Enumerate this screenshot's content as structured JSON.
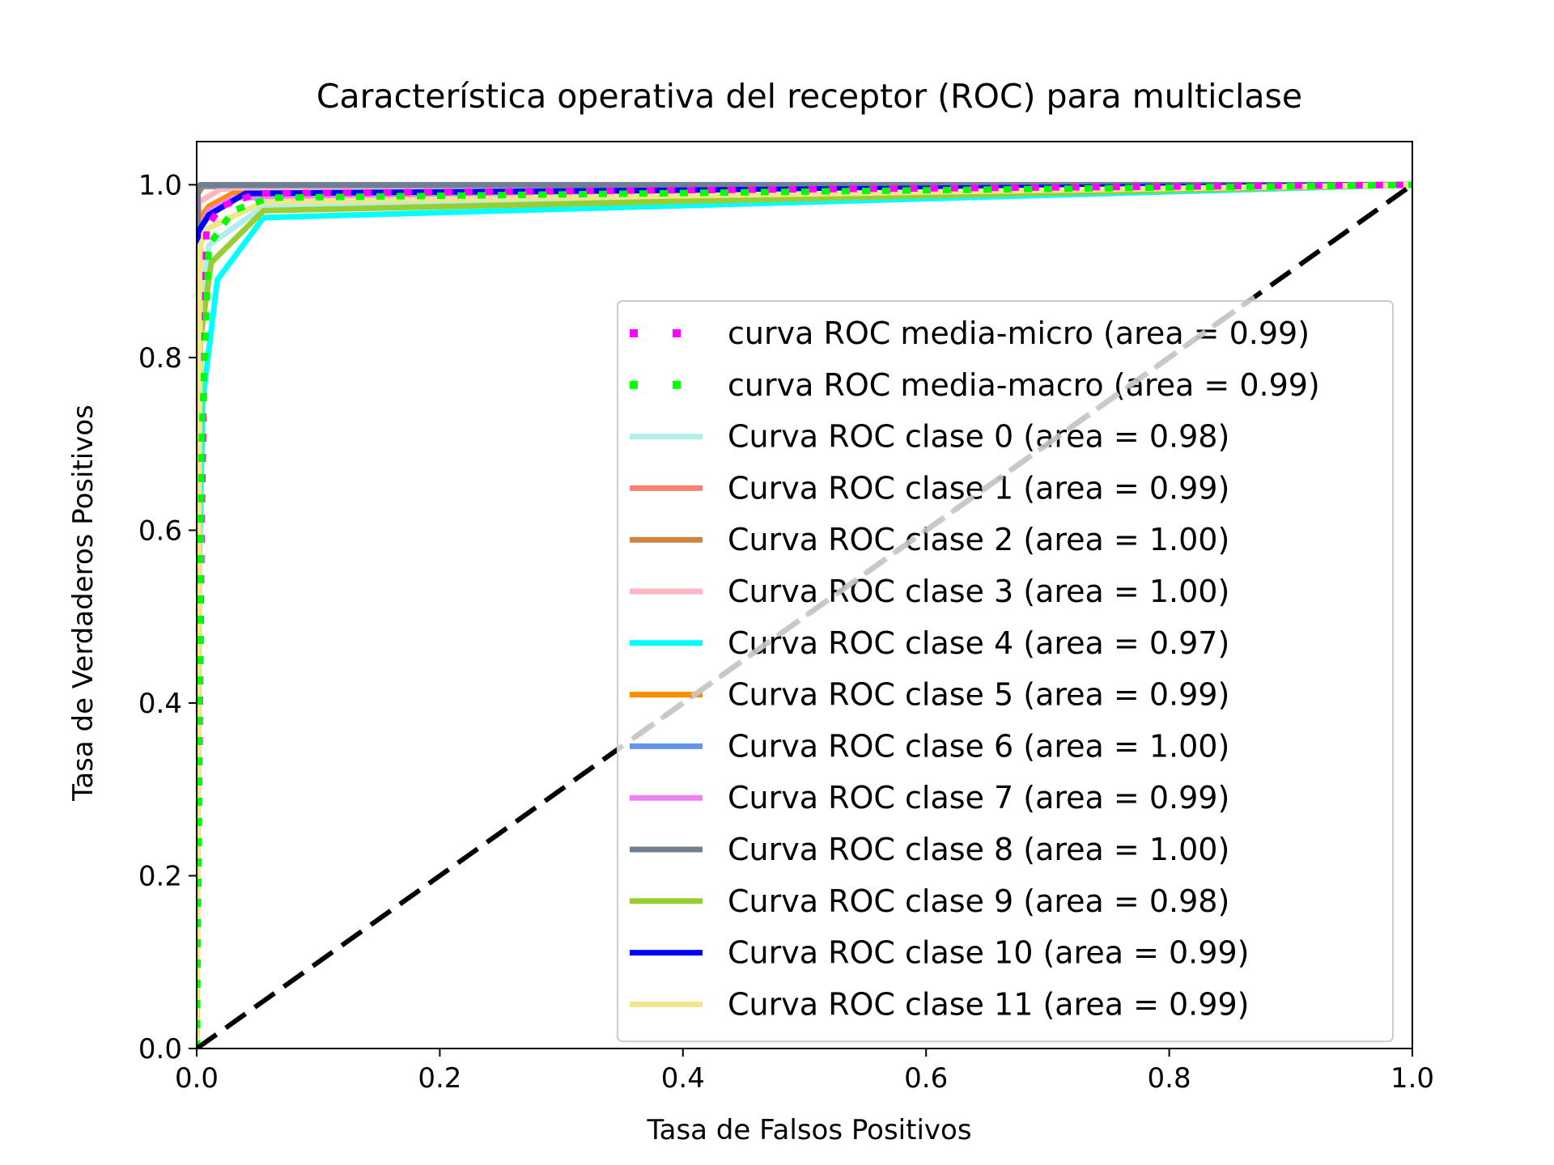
{
  "chart_data": {
    "type": "line",
    "title": "Característica operativa del receptor (ROC) para multiclase",
    "xlabel": "Tasa de Falsos Positivos",
    "ylabel": "Tasa de Verdaderos Positivos",
    "xlim": [
      0.0,
      1.0
    ],
    "ylim": [
      0.0,
      1.05
    ],
    "xticks": [
      0.0,
      0.2,
      0.4,
      0.6,
      0.8,
      1.0
    ],
    "xtick_labels": [
      "0.0",
      "0.2",
      "0.4",
      "0.6",
      "0.8",
      "1.0"
    ],
    "yticks": [
      0.0,
      0.2,
      0.4,
      0.6,
      0.8,
      1.0
    ],
    "ytick_labels": [
      "0.0",
      "0.2",
      "0.4",
      "0.6",
      "0.8",
      "1.0"
    ],
    "grid": false,
    "legend_position": "lower-right",
    "series": [
      {
        "name": "Curva ROC clase 0 (area = 0.98)",
        "color": "#aeeeee",
        "style": "solid",
        "x": [
          0.0,
          0.002,
          0.01,
          0.03,
          0.055,
          1.0
        ],
        "y": [
          0.0,
          0.85,
          0.93,
          0.95,
          0.975,
          1.0
        ]
      },
      {
        "name": "Curva ROC clase 1 (area = 0.99)",
        "color": "#fa8072",
        "style": "solid",
        "x": [
          0.0,
          0.002,
          0.01,
          0.03,
          1.0
        ],
        "y": [
          0.0,
          0.95,
          0.975,
          0.99,
          1.0
        ]
      },
      {
        "name": "Curva ROC clase 2 (area = 1.00)",
        "color": "#cd853f",
        "style": "solid",
        "x": [
          0.0,
          0.001,
          0.005,
          1.0
        ],
        "y": [
          0.0,
          0.99,
          0.998,
          1.0
        ]
      },
      {
        "name": "Curva ROC clase 3 (area = 1.00)",
        "color": "#ffb6c1",
        "style": "solid",
        "x": [
          0.0,
          0.002,
          0.02,
          1.0
        ],
        "y": [
          0.0,
          0.98,
          0.995,
          1.0
        ]
      },
      {
        "name": "Curva ROC clase 4 (area = 0.97)",
        "color": "#00ffff",
        "style": "solid",
        "x": [
          0.0,
          0.002,
          0.005,
          0.017,
          0.055,
          1.0
        ],
        "y": [
          0.0,
          0.56,
          0.75,
          0.89,
          0.962,
          1.0
        ]
      },
      {
        "name": "Curva ROC clase 5 (area = 0.99)",
        "color": "#ff8c00",
        "style": "solid",
        "x": [
          0.0,
          0.002,
          0.01,
          0.03,
          1.0
        ],
        "y": [
          0.0,
          0.96,
          0.975,
          0.99,
          1.0
        ]
      },
      {
        "name": "Curva ROC clase 6 (area = 1.00)",
        "color": "#6495ed",
        "style": "solid",
        "x": [
          0.0,
          0.001,
          0.005,
          1.0
        ],
        "y": [
          0.0,
          0.995,
          0.999,
          1.0
        ]
      },
      {
        "name": "Curva ROC clase 7 (area = 0.99)",
        "color": "#ee82ee",
        "style": "solid",
        "x": [
          0.0,
          0.002,
          0.01,
          0.03,
          1.0
        ],
        "y": [
          0.0,
          0.95,
          0.97,
          0.985,
          1.0
        ]
      },
      {
        "name": "Curva ROC clase 8 (area = 1.00)",
        "color": "#708090",
        "style": "solid",
        "x": [
          0.0,
          0.001,
          0.003,
          1.0
        ],
        "y": [
          0.0,
          0.997,
          1.0,
          1.0
        ]
      },
      {
        "name": "Curva ROC clase 9 (area = 0.98)",
        "color": "#9acd32",
        "style": "solid",
        "x": [
          0.0,
          0.003,
          0.012,
          0.055,
          1.0
        ],
        "y": [
          0.0,
          0.82,
          0.91,
          0.97,
          1.0
        ]
      },
      {
        "name": "Curva ROC clase 10 (area = 0.99)",
        "color": "#0000ff",
        "style": "solid",
        "x": [
          0.0,
          0.001,
          0.01,
          0.04,
          1.0
        ],
        "y": [
          0.0,
          0.945,
          0.965,
          0.99,
          1.0
        ]
      },
      {
        "name": "Curva ROC clase 11 (area = 0.99)",
        "color": "#f0e68c",
        "style": "solid",
        "x": [
          0.0,
          0.003,
          0.01,
          0.055,
          1.0
        ],
        "y": [
          0.0,
          0.93,
          0.95,
          0.98,
          1.0
        ]
      },
      {
        "name": "curva ROC media-micro (area = 0.99)",
        "color": "#ff00ff",
        "style": "dotted",
        "x": [
          0.0,
          0.004,
          0.008,
          0.02,
          0.05,
          1.0
        ],
        "y": [
          0.0,
          0.6,
          0.95,
          0.975,
          0.99,
          1.0
        ]
      },
      {
        "name": "curva ROC media-macro (area = 0.99)",
        "color": "#00ff00",
        "style": "dotted",
        "x": [
          0.0,
          0.004,
          0.01,
          0.03,
          0.06,
          1.0
        ],
        "y": [
          0.0,
          0.7,
          0.93,
          0.97,
          0.985,
          1.0
        ]
      },
      {
        "name": "",
        "color": "#000000",
        "style": "dashed",
        "x": [
          0.0,
          1.0
        ],
        "y": [
          0.0,
          1.0
        ]
      }
    ],
    "legend_order": [
      12,
      13,
      0,
      1,
      2,
      3,
      4,
      5,
      6,
      7,
      8,
      9,
      10,
      11
    ]
  }
}
